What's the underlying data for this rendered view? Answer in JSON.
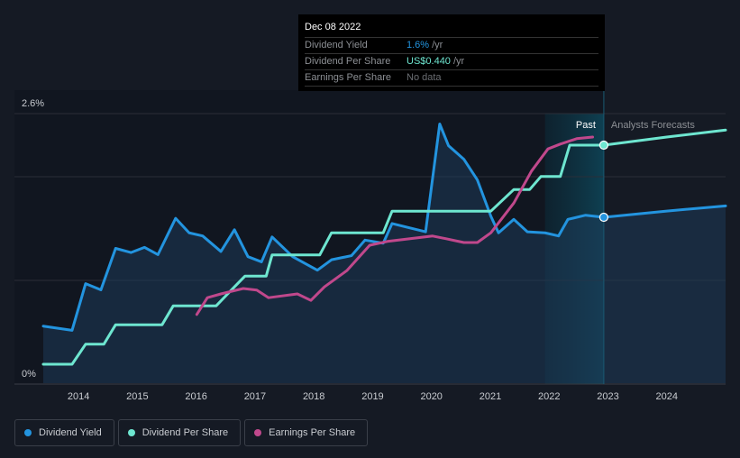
{
  "tooltip": {
    "date": "Dec 08 2022",
    "rows": [
      {
        "label": "Dividend Yield",
        "value": "1.6%",
        "unit": "/yr",
        "color": "#2394df"
      },
      {
        "label": "Dividend Per Share",
        "value": "US$0.440",
        "unit": "/yr",
        "color": "#6ee6d0"
      },
      {
        "label": "Earnings Per Share",
        "value": "No data",
        "unit": "",
        "color": "#6b6e73"
      }
    ]
  },
  "chart_data": {
    "type": "line",
    "y_axis": {
      "labels": [
        "2.6%",
        "0%"
      ],
      "ylim": [
        0,
        2.6
      ],
      "unit": "%"
    },
    "x_ticks": [
      "2014",
      "2015",
      "2016",
      "2017",
      "2018",
      "2019",
      "2020",
      "2021",
      "2022",
      "2023",
      "2024"
    ],
    "xlim": [
      2013.4,
      2025.0
    ],
    "past_label": "Past",
    "forecast_label": "Analysts Forecasts",
    "past_end": 2022.93,
    "shade_start": 2021.93,
    "series": [
      {
        "name": "Dividend Yield",
        "color": "#2394df",
        "axis": "percent",
        "area": true,
        "points": [
          [
            2013.4,
            0.55
          ],
          [
            2013.89,
            0.51
          ],
          [
            2014.12,
            0.96
          ],
          [
            2014.38,
            0.9
          ],
          [
            2014.63,
            1.3
          ],
          [
            2014.89,
            1.26
          ],
          [
            2015.12,
            1.31
          ],
          [
            2015.35,
            1.24
          ],
          [
            2015.65,
            1.59
          ],
          [
            2015.88,
            1.45
          ],
          [
            2016.11,
            1.42
          ],
          [
            2016.42,
            1.27
          ],
          [
            2016.65,
            1.48
          ],
          [
            2016.88,
            1.22
          ],
          [
            2017.11,
            1.17
          ],
          [
            2017.29,
            1.41
          ],
          [
            2017.64,
            1.22
          ],
          [
            2018.06,
            1.09
          ],
          [
            2018.3,
            1.19
          ],
          [
            2018.64,
            1.23
          ],
          [
            2018.87,
            1.38
          ],
          [
            2019.18,
            1.35
          ],
          [
            2019.33,
            1.54
          ],
          [
            2019.9,
            1.46
          ],
          [
            2020.14,
            2.5
          ],
          [
            2020.29,
            2.29
          ],
          [
            2020.55,
            2.16
          ],
          [
            2020.78,
            1.96
          ],
          [
            2021.01,
            1.61
          ],
          [
            2021.14,
            1.45
          ],
          [
            2021.4,
            1.58
          ],
          [
            2021.63,
            1.46
          ],
          [
            2021.93,
            1.45
          ],
          [
            2022.16,
            1.42
          ],
          [
            2022.32,
            1.58
          ],
          [
            2022.62,
            1.62
          ],
          [
            2022.93,
            1.6
          ],
          [
            2024.0,
            1.66
          ],
          [
            2025.0,
            1.71
          ]
        ]
      },
      {
        "name": "Dividend Per Share",
        "color": "#6ee6d0",
        "axis": "usd",
        "points": [
          [
            2013.4,
            0.035
          ],
          [
            2013.89,
            0.035
          ],
          [
            2014.12,
            0.072
          ],
          [
            2014.43,
            0.072
          ],
          [
            2014.63,
            0.108
          ],
          [
            2015.42,
            0.108
          ],
          [
            2015.61,
            0.143
          ],
          [
            2016.34,
            0.143
          ],
          [
            2016.65,
            0.178
          ],
          [
            2016.83,
            0.198
          ],
          [
            2017.19,
            0.198
          ],
          [
            2017.29,
            0.237
          ],
          [
            2018.1,
            0.237
          ],
          [
            2018.3,
            0.278
          ],
          [
            2019.18,
            0.278
          ],
          [
            2019.33,
            0.318
          ],
          [
            2021.01,
            0.318
          ],
          [
            2021.4,
            0.358
          ],
          [
            2021.67,
            0.358
          ],
          [
            2021.86,
            0.382
          ],
          [
            2022.19,
            0.382
          ],
          [
            2022.35,
            0.44
          ],
          [
            2022.93,
            0.44
          ],
          [
            2024.0,
            0.455
          ],
          [
            2025.0,
            0.468
          ]
        ]
      },
      {
        "name": "Earnings Per Share",
        "color": "#c0488c",
        "axis": "usd",
        "points": [
          [
            2016.01,
            0.127
          ],
          [
            2016.19,
            0.158
          ],
          [
            2016.42,
            0.165
          ],
          [
            2016.8,
            0.175
          ],
          [
            2017.03,
            0.172
          ],
          [
            2017.23,
            0.158
          ],
          [
            2017.72,
            0.165
          ],
          [
            2017.95,
            0.153
          ],
          [
            2018.18,
            0.178
          ],
          [
            2018.56,
            0.208
          ],
          [
            2018.95,
            0.255
          ],
          [
            2019.25,
            0.262
          ],
          [
            2020.02,
            0.272
          ],
          [
            2020.25,
            0.267
          ],
          [
            2020.55,
            0.26
          ],
          [
            2020.78,
            0.26
          ],
          [
            2021.01,
            0.278
          ],
          [
            2021.4,
            0.333
          ],
          [
            2021.7,
            0.392
          ],
          [
            2021.98,
            0.433
          ],
          [
            2022.19,
            0.442
          ],
          [
            2022.47,
            0.452
          ],
          [
            2022.74,
            0.455
          ]
        ]
      }
    ],
    "markers": [
      {
        "series": "Dividend Yield",
        "x": 2022.93,
        "y": 1.6
      },
      {
        "series": "Dividend Per Share",
        "x": 2022.93,
        "y": 0.44
      }
    ]
  },
  "legend": [
    {
      "label": "Dividend Yield",
      "color": "#2394df"
    },
    {
      "label": "Dividend Per Share",
      "color": "#6ee6d0"
    },
    {
      "label": "Earnings Per Share",
      "color": "#c0488c"
    }
  ]
}
